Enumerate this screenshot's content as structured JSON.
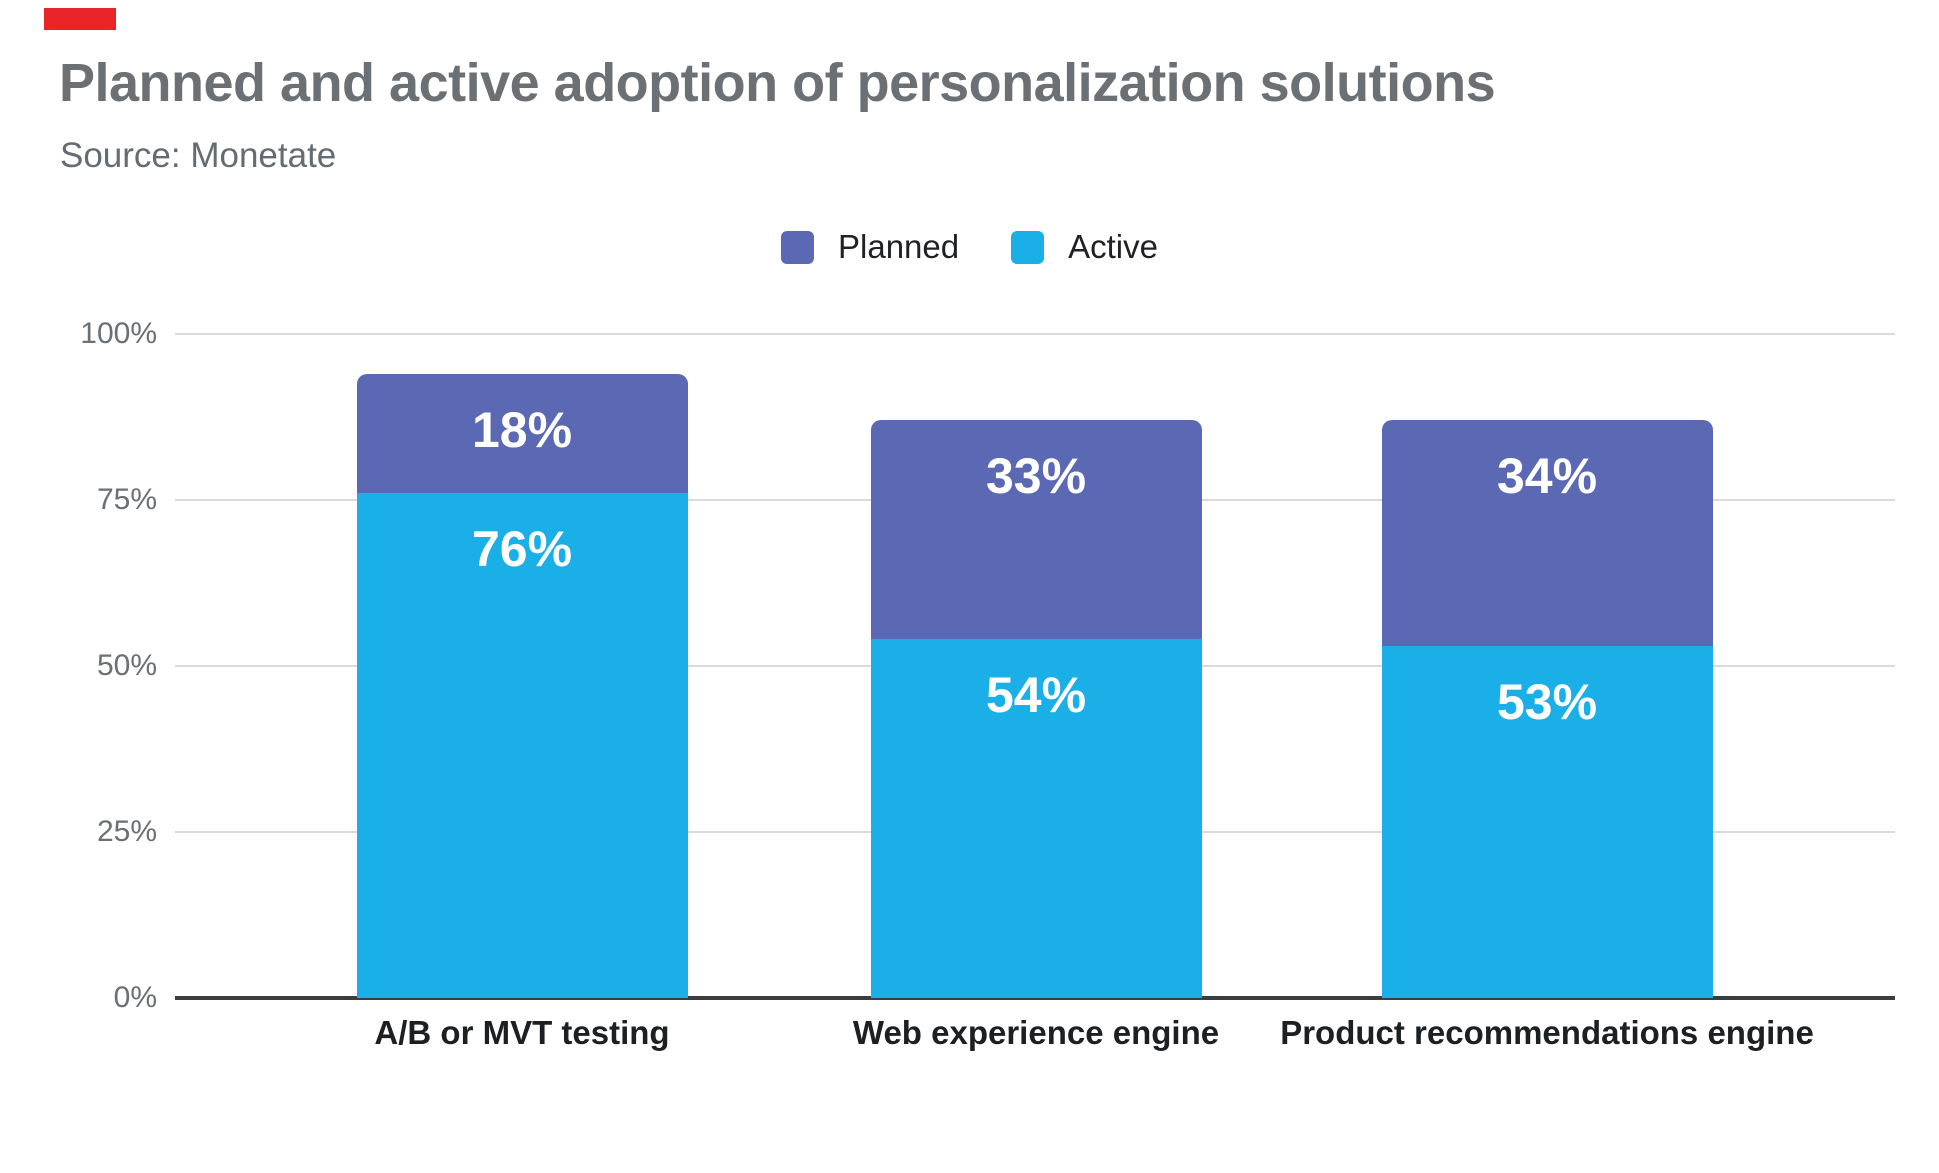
{
  "header": {
    "title": "Planned and active adoption of personalization solutions",
    "source": "Source: Monetate"
  },
  "artifact_marker": {
    "color": "#e92428"
  },
  "legend": [
    {
      "label": "Planned",
      "color": "#5b68b3"
    },
    {
      "label": "Active",
      "color": "#1bafe8"
    }
  ],
  "axis": {
    "tick_labels": [
      "100%",
      "75%",
      "50%",
      "25%",
      "0%"
    ],
    "tick_values": [
      100,
      75,
      50,
      25,
      0
    ]
  },
  "chart_data": {
    "type": "bar",
    "stacked": true,
    "title": "Planned and active adoption of personalization solutions",
    "source": "Source: Monetate",
    "categories": [
      "A/B or MVT testing",
      "Web experience engine",
      "Product recommendations engine"
    ],
    "series": [
      {
        "name": "Planned",
        "color": "#5b68b3",
        "values": [
          18,
          33,
          34
        ]
      },
      {
        "name": "Active",
        "color": "#1bafe8",
        "values": [
          76,
          54,
          53
        ]
      }
    ],
    "value_suffix": "%",
    "ylim": [
      0,
      100
    ],
    "grid": true,
    "legend_position": "top",
    "gridline_color": "#d8dadd",
    "baseline_color": "#3a3e41"
  }
}
